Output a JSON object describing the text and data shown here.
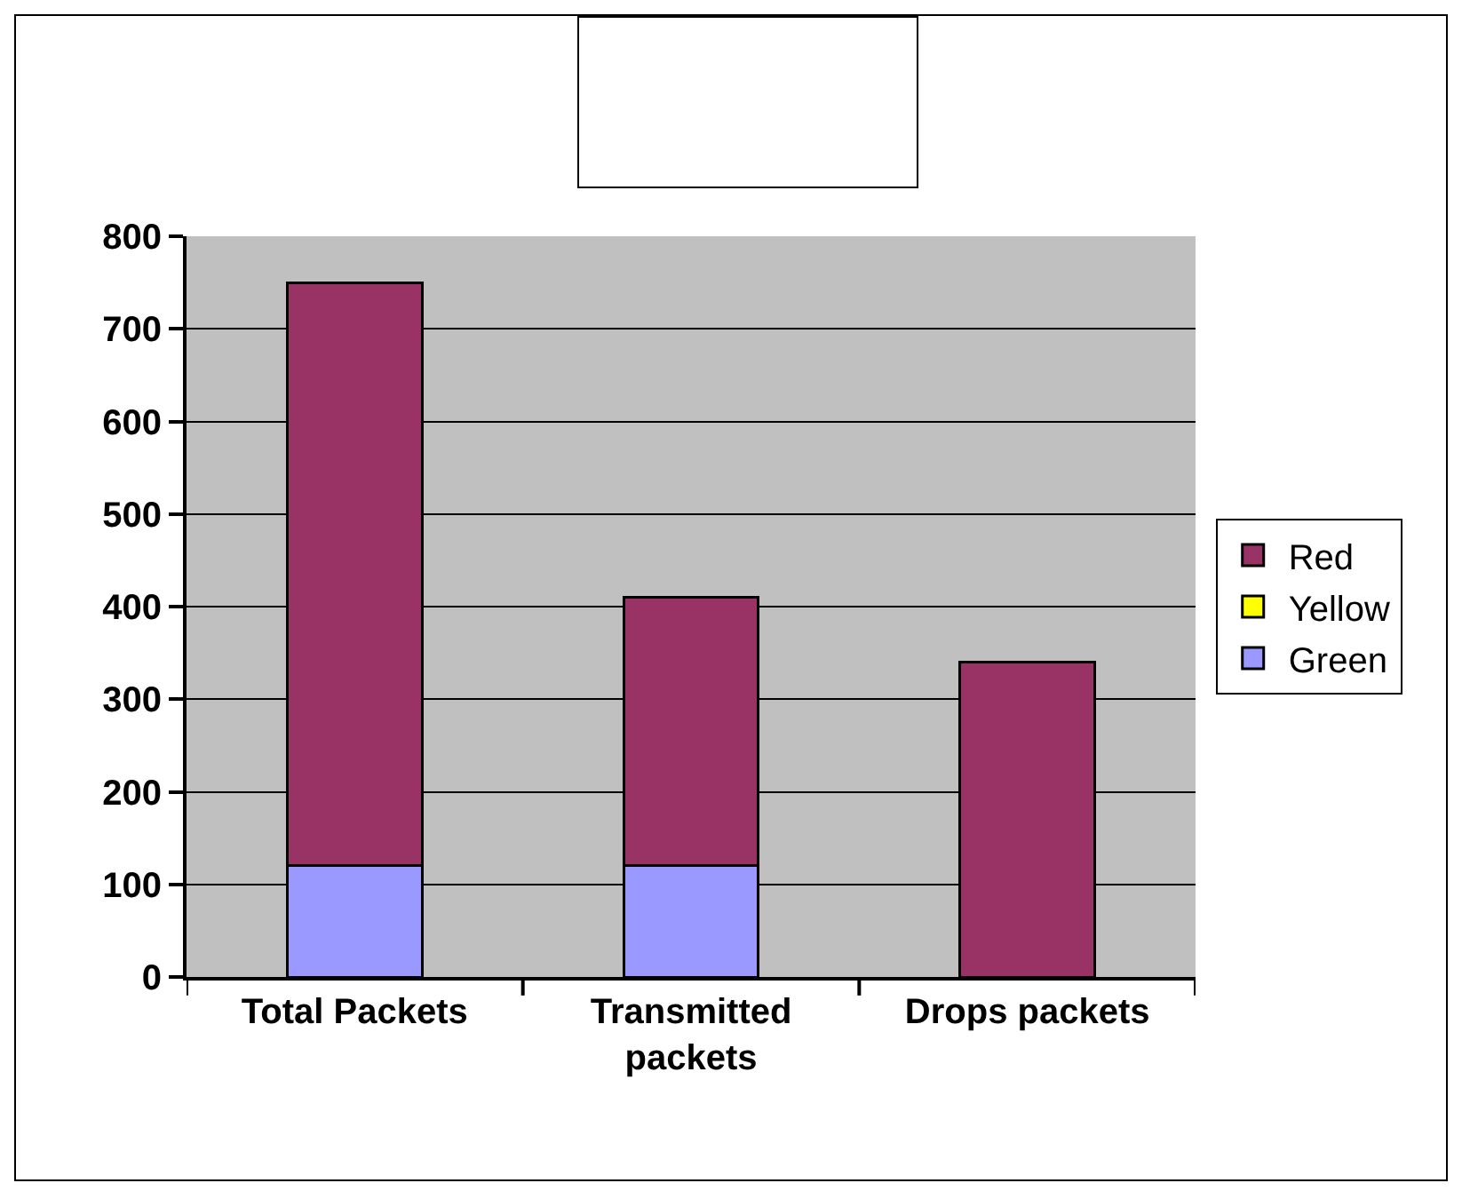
{
  "chart_data": {
    "type": "bar",
    "stacked": true,
    "categories": [
      "Total Packets",
      "Transmitted packets",
      "Drops packets"
    ],
    "series": [
      {
        "name": "Green",
        "color": "#9999ff",
        "values": [
          120,
          120,
          0
        ]
      },
      {
        "name": "Yellow",
        "color": "#ffff00",
        "values": [
          0,
          0,
          0
        ]
      },
      {
        "name": "Red",
        "color": "#993366",
        "values": [
          630,
          290,
          340
        ]
      }
    ],
    "ylim": [
      0,
      800
    ],
    "yticks": [
      0,
      100,
      200,
      300,
      400,
      500,
      600,
      700,
      800
    ],
    "grid": "y",
    "legend": "right"
  }
}
